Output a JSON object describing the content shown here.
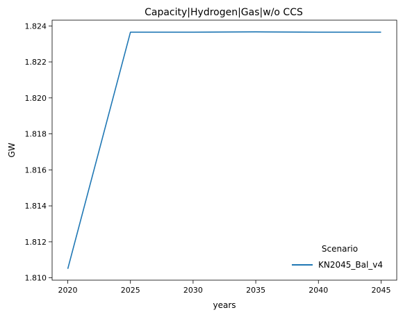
{
  "chart_data": {
    "type": "line",
    "title": "Capacity|Hydrogen|Gas|w/o CCS",
    "xlabel": "years",
    "ylabel": "GW",
    "x": [
      2020,
      2025,
      2030,
      2035,
      2040,
      2045
    ],
    "xlim": [
      2018.75,
      2046.25
    ],
    "ylim": [
      1.80987,
      1.82432
    ],
    "xticks": [
      2020,
      2025,
      2030,
      2035,
      2040,
      2045
    ],
    "yticks": [
      1.81,
      1.812,
      1.814,
      1.816,
      1.818,
      1.82,
      1.822,
      1.824
    ],
    "ytick_labels": [
      "1.810",
      "1.812",
      "1.814",
      "1.816",
      "1.818",
      "1.820",
      "1.822",
      "1.824"
    ],
    "grid": false,
    "legend": {
      "title": "Scenario",
      "placement": "lower-right"
    },
    "series": [
      {
        "name": "KN2045_Bal_v4",
        "color": "#1f77b4",
        "values": [
          1.8105,
          1.82365,
          1.82365,
          1.82367,
          1.82365,
          1.82365
        ]
      }
    ]
  }
}
